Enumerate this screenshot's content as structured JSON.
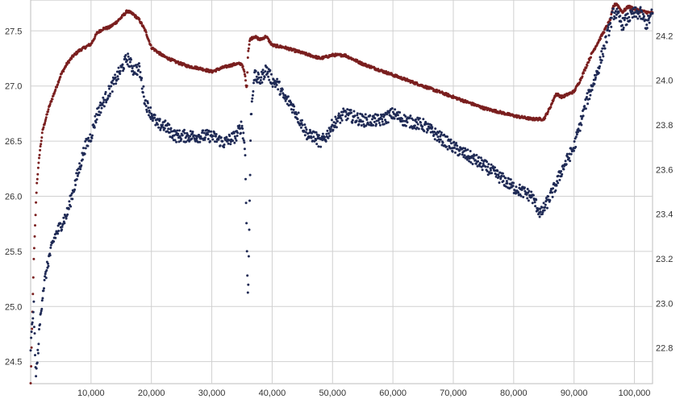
{
  "chart_data": {
    "type": "scatter",
    "title": "",
    "xlabel": "",
    "ylabel_left": "",
    "ylabel_right": "",
    "grid": true,
    "legend": "none",
    "xlim": [
      0,
      103000
    ],
    "ylim_left": [
      24.3,
      27.78
    ],
    "ylim_right": [
      22.64,
      24.36
    ],
    "x_ticks": [
      {
        "v": 10000,
        "label": "10,000"
      },
      {
        "v": 20000,
        "label": "20,000"
      },
      {
        "v": 30000,
        "label": "30,000"
      },
      {
        "v": 40000,
        "label": "40,000"
      },
      {
        "v": 50000,
        "label": "50,000"
      },
      {
        "v": 60000,
        "label": "60,000"
      },
      {
        "v": 70000,
        "label": "70,000"
      },
      {
        "v": 80000,
        "label": "80,000"
      },
      {
        "v": 90000,
        "label": "90,000"
      },
      {
        "v": 100000,
        "label": "100,000"
      }
    ],
    "y_left_ticks": [
      {
        "v": 24.5,
        "label": "24.5"
      },
      {
        "v": 25.0,
        "label": "25.0"
      },
      {
        "v": 25.5,
        "label": "25.5"
      },
      {
        "v": 26.0,
        "label": "26.0"
      },
      {
        "v": 26.5,
        "label": "26.5"
      },
      {
        "v": 27.0,
        "label": "27.0"
      },
      {
        "v": 27.5,
        "label": "27.5"
      }
    ],
    "y_right_ticks": [
      {
        "v": 22.8,
        "label": "22.8"
      },
      {
        "v": 23.0,
        "label": "23.0"
      },
      {
        "v": 23.2,
        "label": "23.2"
      },
      {
        "v": 23.4,
        "label": "23.4"
      },
      {
        "v": 23.6,
        "label": "23.6"
      },
      {
        "v": 23.8,
        "label": "23.8"
      },
      {
        "v": 24.0,
        "label": "24.0"
      },
      {
        "v": 24.2,
        "label": "24.2"
      }
    ],
    "series": [
      {
        "axis": "left",
        "color": "#7a1f1f",
        "marker": "dot",
        "noise": 0.012,
        "x": [
          0,
          500,
          1000,
          1500,
          2000,
          3000,
          4000,
          5000,
          6000,
          7000,
          8000,
          9000,
          10000,
          11000,
          12000,
          13000,
          14000,
          15000,
          16000,
          17000,
          18000,
          19000,
          20000,
          22000,
          24000,
          26000,
          28000,
          30000,
          32000,
          34000,
          35000,
          35500,
          35800,
          36000,
          36300,
          37000,
          38000,
          39000,
          40000,
          42000,
          45000,
          48000,
          50000,
          52000,
          55000,
          60000,
          65000,
          70000,
          75000,
          80000,
          83000,
          85000,
          86000,
          87000,
          88000,
          90000,
          91000,
          93000,
          95000,
          96000,
          96500,
          97000,
          98000,
          99000,
          100000,
          101000,
          102000,
          103000
        ],
        "y": [
          24.3,
          25.4,
          26.1,
          26.4,
          26.6,
          26.8,
          26.95,
          27.1,
          27.2,
          27.27,
          27.32,
          27.35,
          27.38,
          27.48,
          27.52,
          27.53,
          27.57,
          27.62,
          27.68,
          27.65,
          27.6,
          27.5,
          27.35,
          27.27,
          27.22,
          27.18,
          27.16,
          27.13,
          27.17,
          27.2,
          27.2,
          27.1,
          26.96,
          27.3,
          27.42,
          27.45,
          27.42,
          27.45,
          27.37,
          27.35,
          27.3,
          27.25,
          27.28,
          27.28,
          27.2,
          27.1,
          27.0,
          26.9,
          26.8,
          26.73,
          26.7,
          26.7,
          26.8,
          26.93,
          26.9,
          26.95,
          27.05,
          27.3,
          27.5,
          27.6,
          27.72,
          27.75,
          27.67,
          27.72,
          27.7,
          27.68,
          27.67,
          27.66
        ]
      },
      {
        "axis": "right",
        "color": "#1f2a55",
        "marker": "dot",
        "noise": 0.028,
        "x": [
          0,
          500,
          800,
          1000,
          1500,
          2000,
          3000,
          4000,
          5000,
          6000,
          7000,
          8000,
          9000,
          10000,
          11000,
          12000,
          13000,
          14000,
          15000,
          16000,
          17000,
          18000,
          19000,
          20000,
          21000,
          22000,
          24000,
          26000,
          28000,
          30000,
          32000,
          34000,
          35000,
          35500,
          35800,
          36000,
          36500,
          37000,
          38000,
          39000,
          40000,
          41000,
          42000,
          43000,
          44000,
          45000,
          46000,
          47000,
          48000,
          49000,
          50000,
          52000,
          55000,
          58000,
          60000,
          62000,
          65000,
          70000,
          75000,
          80000,
          83000,
          84500,
          85500,
          87000,
          88000,
          90000,
          92000,
          94000,
          95000,
          96000,
          96500,
          97000,
          98000,
          99000,
          100000,
          101000,
          102000,
          103000
        ],
        "y": [
          22.8,
          23.0,
          22.7,
          22.7,
          22.9,
          23.05,
          23.2,
          23.3,
          23.35,
          23.4,
          23.5,
          23.6,
          23.7,
          23.75,
          23.85,
          23.9,
          23.95,
          24.0,
          24.05,
          24.1,
          24.05,
          24.05,
          23.9,
          23.85,
          23.8,
          23.8,
          23.75,
          23.75,
          23.75,
          23.75,
          23.72,
          23.75,
          23.8,
          23.7,
          23.3,
          23.0,
          23.85,
          24.02,
          24.0,
          24.05,
          24.0,
          23.98,
          23.92,
          23.9,
          23.85,
          23.8,
          23.75,
          23.75,
          23.72,
          23.75,
          23.8,
          23.85,
          23.82,
          23.82,
          23.85,
          23.82,
          23.8,
          23.7,
          23.62,
          23.52,
          23.48,
          23.4,
          23.45,
          23.53,
          23.6,
          23.7,
          23.9,
          24.05,
          24.15,
          24.25,
          24.3,
          24.3,
          24.25,
          24.28,
          24.3,
          24.3,
          24.25,
          24.3
        ]
      }
    ]
  }
}
